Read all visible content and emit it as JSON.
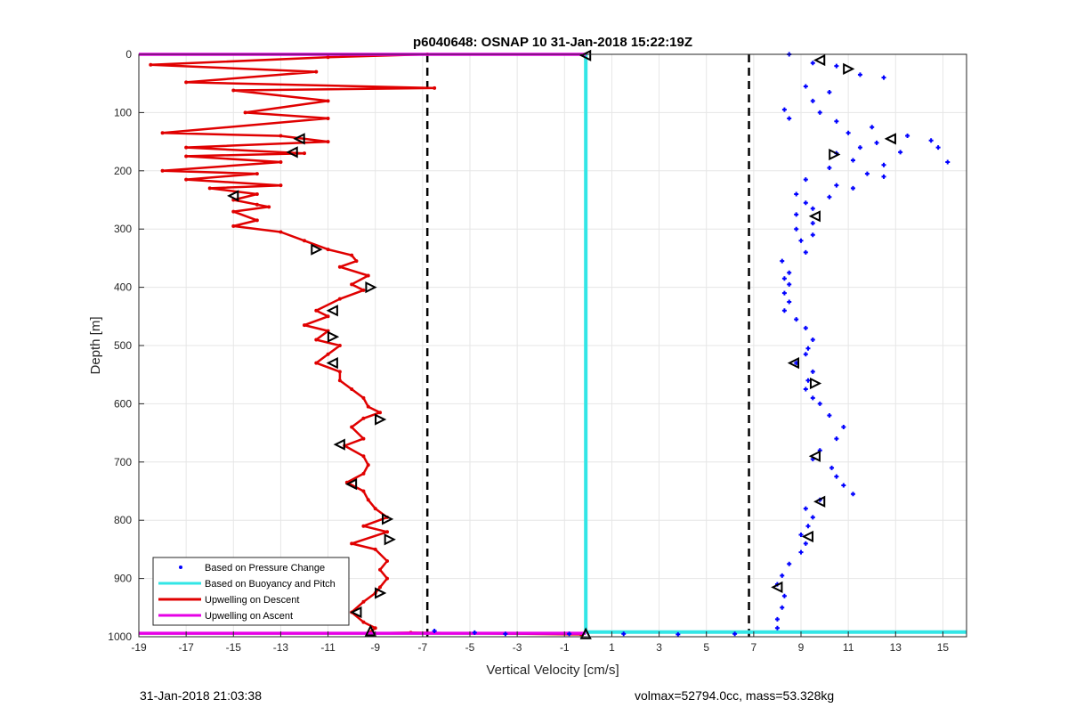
{
  "chart_data": {
    "type": "scatter",
    "title": "p6040648: OSNAP 10 31-Jan-2018 15:22:19Z",
    "xlabel": "Vertical Velocity [cm/s]",
    "ylabel": "Depth [m]",
    "xlim": [
      -19,
      16
    ],
    "ylim": [
      1000,
      0
    ],
    "y_reversed": true,
    "grid": true,
    "xticks": [
      -19,
      -17,
      -15,
      -13,
      -11,
      -9,
      -7,
      -5,
      -3,
      -1,
      1,
      3,
      5,
      7,
      9,
      11,
      13,
      15
    ],
    "yticks": [
      0,
      100,
      200,
      300,
      400,
      500,
      600,
      700,
      800,
      900,
      1000
    ],
    "legend_position": "bottom-left",
    "legend": [
      {
        "label": "Based on Pressure Change",
        "color": "#0000ff",
        "style": "dot"
      },
      {
        "label": "Based on Buoyancy and Pitch",
        "color": "#33e6e6",
        "style": "line"
      },
      {
        "label": "Upwelling on Descent",
        "color": "#e00000",
        "style": "line"
      },
      {
        "label": "Upwelling on Ascent",
        "color": "#e600e6",
        "style": "line"
      }
    ],
    "series": [
      {
        "name": "Upwelling on Descent",
        "color": "#e00000",
        "kind": "line",
        "points": [
          [
            -6.8,
            0
          ],
          [
            -11,
            5
          ],
          [
            -18.5,
            18
          ],
          [
            -11.5,
            30
          ],
          [
            -17,
            48
          ],
          [
            -6.5,
            58
          ],
          [
            -15,
            62
          ],
          [
            -11,
            80
          ],
          [
            -14.5,
            100
          ],
          [
            -11,
            110
          ],
          [
            -18,
            135
          ],
          [
            -13,
            140
          ],
          [
            -11,
            150
          ],
          [
            -17,
            160
          ],
          [
            -12,
            170
          ],
          [
            -17,
            175
          ],
          [
            -13,
            185
          ],
          [
            -18,
            200
          ],
          [
            -14,
            205
          ],
          [
            -17,
            215
          ],
          [
            -13,
            225
          ],
          [
            -16,
            230
          ],
          [
            -14,
            240
          ],
          [
            -15,
            250
          ],
          [
            -14,
            258
          ],
          [
            -13.5,
            262
          ],
          [
            -15,
            270
          ],
          [
            -14,
            285
          ],
          [
            -15,
            295
          ],
          [
            -13,
            305
          ],
          [
            -12,
            320
          ],
          [
            -11,
            335
          ],
          [
            -10,
            345
          ],
          [
            -9.8,
            355
          ],
          [
            -10.5,
            365
          ],
          [
            -9.3,
            380
          ],
          [
            -10,
            395
          ],
          [
            -9.5,
            405
          ],
          [
            -10.5,
            420
          ],
          [
            -11.5,
            440
          ],
          [
            -11,
            450
          ],
          [
            -12,
            465
          ],
          [
            -11,
            475
          ],
          [
            -11.5,
            490
          ],
          [
            -10.5,
            500
          ],
          [
            -11,
            515
          ],
          [
            -11.5,
            530
          ],
          [
            -10.5,
            545
          ],
          [
            -10.5,
            560
          ],
          [
            -10,
            575
          ],
          [
            -9.5,
            590
          ],
          [
            -9.3,
            605
          ],
          [
            -8.8,
            615
          ],
          [
            -9.5,
            625
          ],
          [
            -10,
            640
          ],
          [
            -9.5,
            660
          ],
          [
            -10.3,
            672
          ],
          [
            -9.5,
            690
          ],
          [
            -9.3,
            705
          ],
          [
            -9.5,
            720
          ],
          [
            -10.2,
            735
          ],
          [
            -9.5,
            750
          ],
          [
            -9.3,
            765
          ],
          [
            -9.0,
            780
          ],
          [
            -8.5,
            795
          ],
          [
            -9.5,
            810
          ],
          [
            -8.5,
            820
          ],
          [
            -10,
            840
          ],
          [
            -9.0,
            850
          ],
          [
            -8.5,
            870
          ],
          [
            -8.8,
            885
          ],
          [
            -8.5,
            900
          ],
          [
            -8.8,
            915
          ],
          [
            -9.0,
            925
          ],
          [
            -9.5,
            940
          ],
          [
            -10,
            958
          ],
          [
            -9.5,
            975
          ],
          [
            -9.0,
            985
          ],
          [
            -9.3,
            994
          ],
          [
            -7.5,
            993
          ],
          [
            -0.3,
            996
          ]
        ]
      },
      {
        "name": "Based on Pressure Change",
        "color": "#0000ff",
        "kind": "dots",
        "points": [
          [
            8.5,
            0
          ],
          [
            9.5,
            15
          ],
          [
            10.5,
            20
          ],
          [
            11.5,
            35
          ],
          [
            12.5,
            40
          ],
          [
            9.2,
            55
          ],
          [
            10.2,
            65
          ],
          [
            9.5,
            80
          ],
          [
            8.3,
            95
          ],
          [
            9.8,
            100
          ],
          [
            8.5,
            110
          ],
          [
            10.5,
            115
          ],
          [
            12,
            125
          ],
          [
            11,
            135
          ],
          [
            13.5,
            140
          ],
          [
            14.5,
            148
          ],
          [
            12.2,
            152
          ],
          [
            11.5,
            160
          ],
          [
            14.8,
            160
          ],
          [
            13.2,
            168
          ],
          [
            10.5,
            170
          ],
          [
            11.2,
            182
          ],
          [
            12.5,
            190
          ],
          [
            15.2,
            185
          ],
          [
            10.2,
            195
          ],
          [
            11.8,
            205
          ],
          [
            12.5,
            210
          ],
          [
            9.2,
            215
          ],
          [
            10.5,
            225
          ],
          [
            11.2,
            230
          ],
          [
            8.8,
            240
          ],
          [
            10.2,
            245
          ],
          [
            9.2,
            255
          ],
          [
            9.5,
            265
          ],
          [
            8.8,
            275
          ],
          [
            9.5,
            290
          ],
          [
            8.8,
            300
          ],
          [
            9.5,
            310
          ],
          [
            9.0,
            320
          ],
          [
            9.2,
            340
          ],
          [
            8.2,
            355
          ],
          [
            8.5,
            375
          ],
          [
            8.3,
            385
          ],
          [
            8.5,
            395
          ],
          [
            8.3,
            410
          ],
          [
            8.5,
            425
          ],
          [
            8.3,
            440
          ],
          [
            8.8,
            455
          ],
          [
            9.2,
            470
          ],
          [
            9.5,
            490
          ],
          [
            9.3,
            505
          ],
          [
            9.2,
            515
          ],
          [
            8.8,
            530
          ],
          [
            9.5,
            545
          ],
          [
            9.3,
            560
          ],
          [
            9.2,
            575
          ],
          [
            9.5,
            590
          ],
          [
            9.8,
            600
          ],
          [
            10.2,
            620
          ],
          [
            10.8,
            640
          ],
          [
            10.5,
            660
          ],
          [
            9.8,
            680
          ],
          [
            9.5,
            695
          ],
          [
            10.3,
            710
          ],
          [
            10.5,
            725
          ],
          [
            10.8,
            740
          ],
          [
            11.2,
            755
          ],
          [
            9.8,
            765
          ],
          [
            9.2,
            780
          ],
          [
            9.5,
            795
          ],
          [
            9.3,
            810
          ],
          [
            9.0,
            825
          ],
          [
            9.2,
            840
          ],
          [
            9.0,
            855
          ],
          [
            8.5,
            875
          ],
          [
            8.2,
            895
          ],
          [
            8.0,
            910
          ],
          [
            8.3,
            930
          ],
          [
            8.2,
            950
          ],
          [
            8.0,
            970
          ],
          [
            8.0,
            985
          ],
          [
            -6.5,
            990
          ],
          [
            -4.8,
            993
          ],
          [
            -3.5,
            995
          ],
          [
            -0.8,
            995
          ],
          [
            1.5,
            995
          ],
          [
            3.8,
            996
          ],
          [
            6.2,
            995
          ]
        ]
      },
      {
        "name": "Based on Buoyancy and Pitch",
        "color": "#33e6e6",
        "kind": "line",
        "points": [
          [
            -0.1,
            0
          ],
          [
            -0.1,
            992
          ],
          [
            16,
            992
          ]
        ]
      },
      {
        "name": "Upwelling on Ascent",
        "color": "#e600e6",
        "kind": "line",
        "points": [
          [
            -19,
            0
          ],
          [
            -0.1,
            0
          ]
        ],
        "points2": [
          [
            -19,
            994
          ],
          [
            -0.1,
            994
          ]
        ]
      }
    ],
    "reference_lines_x": [
      -6.8,
      6.8
    ],
    "markers": [
      {
        "x": -0.1,
        "y": 2,
        "dir": "left"
      },
      {
        "x": -12.2,
        "y": 145,
        "dir": "left"
      },
      {
        "x": -12.5,
        "y": 168,
        "dir": "left"
      },
      {
        "x": -15,
        "y": 243,
        "dir": "left"
      },
      {
        "x": -11.5,
        "y": 335,
        "dir": "right"
      },
      {
        "x": -9.2,
        "y": 400,
        "dir": "right"
      },
      {
        "x": -10.8,
        "y": 440,
        "dir": "left"
      },
      {
        "x": -10.8,
        "y": 485,
        "dir": "right"
      },
      {
        "x": -10.8,
        "y": 530,
        "dir": "left"
      },
      {
        "x": -8.8,
        "y": 627,
        "dir": "right"
      },
      {
        "x": -10.5,
        "y": 670,
        "dir": "left"
      },
      {
        "x": -10,
        "y": 738,
        "dir": "left"
      },
      {
        "x": -8.5,
        "y": 798,
        "dir": "right"
      },
      {
        "x": -8.4,
        "y": 833,
        "dir": "right"
      },
      {
        "x": -8.8,
        "y": 925,
        "dir": "right"
      },
      {
        "x": -9.8,
        "y": 958,
        "dir": "left"
      },
      {
        "x": -9.2,
        "y": 990,
        "dir": "up"
      },
      {
        "x": -0.1,
        "y": 995,
        "dir": "up"
      },
      {
        "x": 9.8,
        "y": 10,
        "dir": "left"
      },
      {
        "x": 11.0,
        "y": 25,
        "dir": "right"
      },
      {
        "x": 12.8,
        "y": 145,
        "dir": "left"
      },
      {
        "x": 10.4,
        "y": 172,
        "dir": "right"
      },
      {
        "x": 9.6,
        "y": 278,
        "dir": "left"
      },
      {
        "x": 8.7,
        "y": 530,
        "dir": "left"
      },
      {
        "x": 9.6,
        "y": 565,
        "dir": "right"
      },
      {
        "x": 9.6,
        "y": 690,
        "dir": "left"
      },
      {
        "x": 9.8,
        "y": 768,
        "dir": "left"
      },
      {
        "x": 9.3,
        "y": 828,
        "dir": "left"
      },
      {
        "x": 8.0,
        "y": 915,
        "dir": "left"
      }
    ]
  },
  "footer": {
    "left": "31-Jan-2018 21:03:38",
    "right": "volmax=52794.0cc, mass=53.328kg"
  }
}
